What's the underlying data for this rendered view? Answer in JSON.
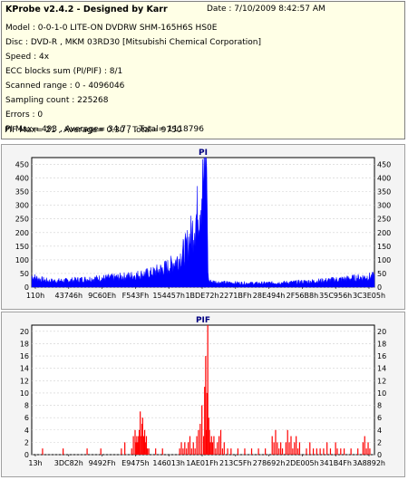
{
  "info": {
    "title": "KProbe v2.4.2 - Designed by Karr",
    "date": "Date : 7/10/2009 8:42:57 AM",
    "model": "Model : 0-0-1-0 LITE-ON DVDRW SHM-165H6S HS0E",
    "disc": "Disc : DVD-R , MKM 03RD30  [Mitsubishi Chemical Corporation]",
    "speed": "Speed : 4x",
    "ecc": "ECC blocks sum (PI/PIF) : 8/1",
    "range": "Scanned range : 0 - 4096046",
    "sampling": "Sampling count : 225268",
    "errors": "Errors : 0",
    "pi_stats": "PI Max= 493 , Average= 34.77 , Total= 1118796",
    "pif_stats": "PIF Max= 21 , Average= 0.30 , Total= 9750"
  },
  "chart_data": [
    {
      "type": "area",
      "title": "PI",
      "color": "#0000ff",
      "ylim": [
        0,
        475
      ],
      "yticks": [
        0,
        50,
        100,
        150,
        200,
        250,
        300,
        350,
        400,
        450
      ],
      "xticks": [
        "110h",
        "43746h",
        "9C60Eh",
        "F543Fh",
        "154457h",
        "1BDE72h",
        "2271BFh",
        "28E494h",
        "2F56B8h",
        "35C956h",
        "3C3E05h"
      ],
      "max": 493,
      "profile": {
        "x": [
          0,
          0.02,
          0.05,
          0.1,
          0.15,
          0.2,
          0.25,
          0.3,
          0.35,
          0.4,
          0.43,
          0.45,
          0.47,
          0.49,
          0.5,
          0.505,
          0.51,
          0.515,
          0.52,
          0.55,
          0.6,
          0.65,
          0.7,
          0.75,
          0.8,
          0.85,
          0.9,
          0.95,
          1.0
        ],
        "y": [
          42,
          32,
          24,
          25,
          30,
          34,
          38,
          45,
          55,
          80,
          110,
          150,
          220,
          320,
          400,
          470,
          493,
          30,
          22,
          18,
          16,
          15,
          16,
          18,
          21,
          25,
          30,
          36,
          42
        ]
      }
    },
    {
      "type": "bar",
      "title": "PIF",
      "color": "#ff0000",
      "ylim": [
        0,
        21
      ],
      "yticks": [
        0,
        2,
        4,
        6,
        8,
        10,
        12,
        14,
        16,
        18,
        20
      ],
      "xticks": [
        "13h",
        "3DC82h",
        "9492Fh",
        "E9475h",
        "146013h",
        "1AE01Fh",
        "213C5Fh",
        "278692h",
        "2DE005h",
        "341B4Fh",
        "3A8892h"
      ],
      "max": 21,
      "spikes": [
        [
          0.03,
          1
        ],
        [
          0.09,
          1
        ],
        [
          0.16,
          1
        ],
        [
          0.2,
          1
        ],
        [
          0.26,
          1
        ],
        [
          0.27,
          2
        ],
        [
          0.29,
          1
        ],
        [
          0.295,
          3
        ],
        [
          0.3,
          4
        ],
        [
          0.303,
          2
        ],
        [
          0.305,
          3
        ],
        [
          0.308,
          2
        ],
        [
          0.31,
          3
        ],
        [
          0.312,
          4
        ],
        [
          0.315,
          7
        ],
        [
          0.318,
          3
        ],
        [
          0.32,
          5
        ],
        [
          0.322,
          6
        ],
        [
          0.325,
          3
        ],
        [
          0.328,
          4
        ],
        [
          0.33,
          2
        ],
        [
          0.333,
          3
        ],
        [
          0.336,
          1
        ],
        [
          0.34,
          1
        ],
        [
          0.36,
          1
        ],
        [
          0.38,
          1
        ],
        [
          0.43,
          1
        ],
        [
          0.435,
          2
        ],
        [
          0.44,
          1
        ],
        [
          0.445,
          2
        ],
        [
          0.45,
          1
        ],
        [
          0.455,
          2
        ],
        [
          0.46,
          3
        ],
        [
          0.465,
          1
        ],
        [
          0.47,
          2
        ],
        [
          0.475,
          1
        ],
        [
          0.48,
          3
        ],
        [
          0.485,
          4
        ],
        [
          0.49,
          5
        ],
        [
          0.495,
          8
        ],
        [
          0.5,
          3
        ],
        [
          0.503,
          11
        ],
        [
          0.506,
          16
        ],
        [
          0.508,
          4
        ],
        [
          0.51,
          10
        ],
        [
          0.512,
          21
        ],
        [
          0.515,
          6
        ],
        [
          0.517,
          4
        ],
        [
          0.52,
          2
        ],
        [
          0.523,
          3
        ],
        [
          0.526,
          2
        ],
        [
          0.53,
          3
        ],
        [
          0.535,
          1
        ],
        [
          0.54,
          2
        ],
        [
          0.545,
          3
        ],
        [
          0.55,
          4
        ],
        [
          0.555,
          1
        ],
        [
          0.56,
          2
        ],
        [
          0.57,
          1
        ],
        [
          0.58,
          1
        ],
        [
          0.6,
          1
        ],
        [
          0.62,
          1
        ],
        [
          0.64,
          1
        ],
        [
          0.66,
          1
        ],
        [
          0.68,
          1
        ],
        [
          0.7,
          3
        ],
        [
          0.705,
          2
        ],
        [
          0.71,
          4
        ],
        [
          0.715,
          2
        ],
        [
          0.72,
          1
        ],
        [
          0.725,
          2
        ],
        [
          0.73,
          1
        ],
        [
          0.74,
          2
        ],
        [
          0.745,
          4
        ],
        [
          0.75,
          2
        ],
        [
          0.755,
          3
        ],
        [
          0.76,
          1
        ],
        [
          0.765,
          2
        ],
        [
          0.77,
          3
        ],
        [
          0.775,
          1
        ],
        [
          0.78,
          2
        ],
        [
          0.8,
          1
        ],
        [
          0.81,
          2
        ],
        [
          0.82,
          1
        ],
        [
          0.83,
          1
        ],
        [
          0.84,
          1
        ],
        [
          0.85,
          1
        ],
        [
          0.86,
          2
        ],
        [
          0.87,
          1
        ],
        [
          0.885,
          2
        ],
        [
          0.89,
          1
        ],
        [
          0.9,
          1
        ],
        [
          0.91,
          1
        ],
        [
          0.93,
          1
        ],
        [
          0.95,
          1
        ],
        [
          0.965,
          2
        ],
        [
          0.97,
          3
        ],
        [
          0.975,
          1
        ],
        [
          0.98,
          2
        ],
        [
          0.985,
          1
        ]
      ]
    }
  ]
}
